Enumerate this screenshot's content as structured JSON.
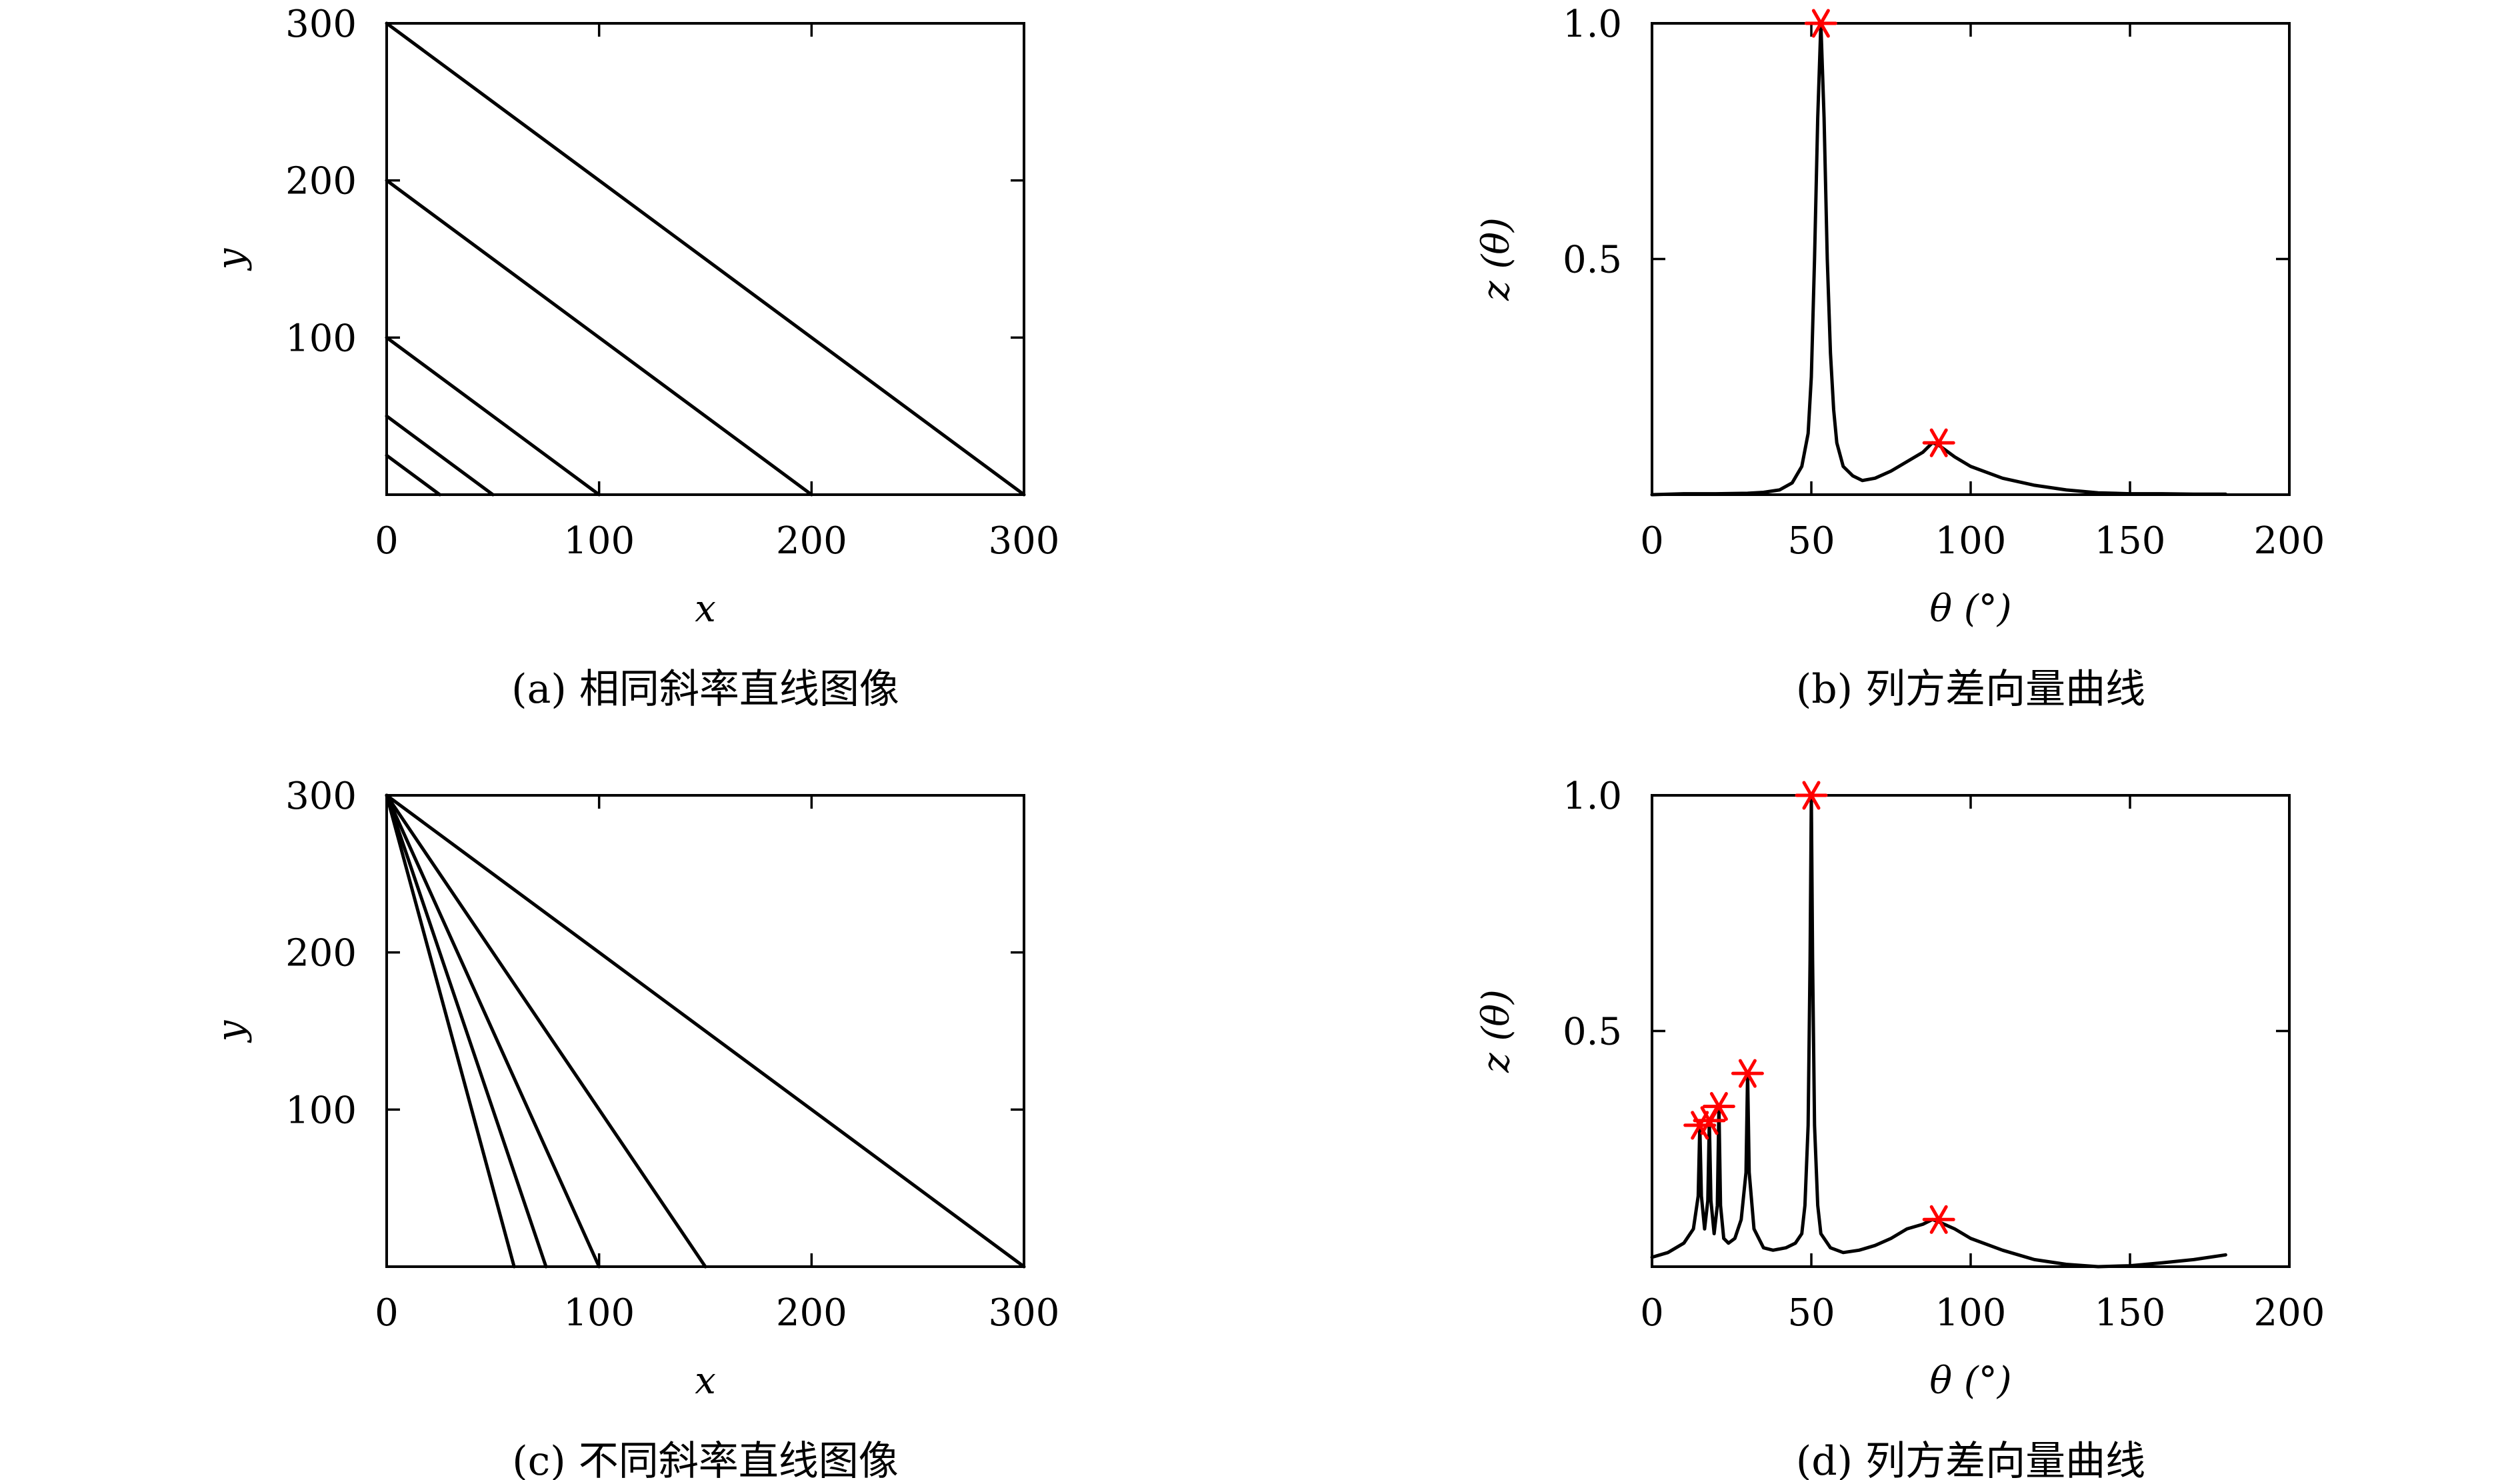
{
  "chart_data": [
    {
      "id": "a",
      "type": "line",
      "caption": "(a) 相同斜率直线图像",
      "xlabel": "x",
      "ylabel": "y",
      "xlim": [
        0,
        300
      ],
      "ylim": [
        0,
        300
      ],
      "xticks": [
        0,
        100,
        200,
        300
      ],
      "yticks": [
        100,
        200,
        300
      ],
      "xtick_labels": [
        "0",
        "100",
        "200",
        "300"
      ],
      "ytick_labels": [
        "100",
        "200",
        "300"
      ],
      "zero_label": "0",
      "lines": [
        [
          [
            0,
            300
          ],
          [
            300,
            0
          ]
        ],
        [
          [
            0,
            200
          ],
          [
            200,
            0
          ]
        ],
        [
          [
            0,
            100
          ],
          [
            100,
            0
          ]
        ],
        [
          [
            0,
            50
          ],
          [
            50,
            0
          ]
        ],
        [
          [
            0,
            25
          ],
          [
            25,
            0
          ]
        ]
      ]
    },
    {
      "id": "b",
      "type": "line",
      "caption": "(b) 列方差向量曲线",
      "xlabel": "θ (°)",
      "ylabel": "z (θ)",
      "xlim": [
        0,
        200
      ],
      "ylim": [
        0,
        1.0
      ],
      "xticks": [
        0,
        50,
        100,
        150,
        200
      ],
      "yticks": [
        0.5,
        1.0
      ],
      "xtick_labels": [
        "0",
        "50",
        "100",
        "150",
        "200"
      ],
      "ytick_labels": [
        "0.5",
        "1.0"
      ],
      "series": [
        {
          "points": [
            [
              0,
              0.0
            ],
            [
              10,
              0.002
            ],
            [
              20,
              0.002
            ],
            [
              30,
              0.003
            ],
            [
              35,
              0.005
            ],
            [
              40,
              0.01
            ],
            [
              44,
              0.025
            ],
            [
              47,
              0.06
            ],
            [
              49,
              0.13
            ],
            [
              50,
              0.25
            ],
            [
              51,
              0.5
            ],
            [
              52,
              0.8
            ],
            [
              53,
              1.0
            ],
            [
              54,
              0.8
            ],
            [
              55,
              0.5
            ],
            [
              56,
              0.3
            ],
            [
              57,
              0.18
            ],
            [
              58,
              0.11
            ],
            [
              60,
              0.06
            ],
            [
              63,
              0.04
            ],
            [
              66,
              0.03
            ],
            [
              70,
              0.035
            ],
            [
              75,
              0.05
            ],
            [
              80,
              0.07
            ],
            [
              85,
              0.09
            ],
            [
              88,
              0.11
            ],
            [
              90,
              0.105
            ],
            [
              95,
              0.08
            ],
            [
              100,
              0.06
            ],
            [
              110,
              0.035
            ],
            [
              120,
              0.02
            ],
            [
              130,
              0.01
            ],
            [
              140,
              0.004
            ],
            [
              150,
              0.002
            ],
            [
              160,
              0.002
            ],
            [
              170,
              0.001
            ],
            [
              180,
              0.001
            ]
          ]
        }
      ],
      "peaks": [
        [
          53,
          1.0
        ],
        [
          90,
          0.11
        ]
      ]
    },
    {
      "id": "c",
      "type": "line",
      "caption": "(c) 不同斜率直线图像",
      "xlabel": "x",
      "ylabel": "y",
      "xlim": [
        0,
        300
      ],
      "ylim": [
        0,
        300
      ],
      "xticks": [
        0,
        100,
        200,
        300
      ],
      "yticks": [
        100,
        200,
        300
      ],
      "xtick_labels": [
        "0",
        "100",
        "200",
        "300"
      ],
      "ytick_labels": [
        "100",
        "200",
        "300"
      ],
      "zero_label": "0",
      "lines": [
        [
          [
            0,
            300
          ],
          [
            300,
            0
          ]
        ],
        [
          [
            0,
            300
          ],
          [
            150,
            0
          ]
        ],
        [
          [
            0,
            300
          ],
          [
            100,
            0
          ]
        ],
        [
          [
            0,
            300
          ],
          [
            75,
            0
          ]
        ],
        [
          [
            0,
            300
          ],
          [
            60,
            0
          ]
        ]
      ]
    },
    {
      "id": "d",
      "type": "line",
      "caption": "(d) 列方差向量曲线",
      "xlabel": "θ (°)",
      "ylabel": "z (θ)",
      "xlim": [
        0,
        200
      ],
      "ylim": [
        0,
        1.0
      ],
      "xticks": [
        0,
        50,
        100,
        150,
        200
      ],
      "yticks": [
        0.5,
        1.0
      ],
      "xtick_labels": [
        "0",
        "50",
        "100",
        "150",
        "200"
      ],
      "ytick_labels": [
        "0.5",
        "1.0"
      ],
      "series": [
        {
          "points": [
            [
              0,
              0.02
            ],
            [
              5,
              0.03
            ],
            [
              10,
              0.05
            ],
            [
              13,
              0.08
            ],
            [
              14.5,
              0.15
            ],
            [
              15,
              0.3
            ],
            [
              15.5,
              0.15
            ],
            [
              16.5,
              0.08
            ],
            [
              17.5,
              0.14
            ],
            [
              18,
              0.31
            ],
            [
              18.5,
              0.14
            ],
            [
              19.5,
              0.07
            ],
            [
              20.5,
              0.13
            ],
            [
              21,
              0.34
            ],
            [
              21.5,
              0.13
            ],
            [
              22.5,
              0.06
            ],
            [
              24,
              0.05
            ],
            [
              26,
              0.06
            ],
            [
              28,
              0.1
            ],
            [
              29.5,
              0.2
            ],
            [
              30,
              0.41
            ],
            [
              30.5,
              0.2
            ],
            [
              32,
              0.08
            ],
            [
              35,
              0.04
            ],
            [
              38,
              0.035
            ],
            [
              42,
              0.04
            ],
            [
              45,
              0.05
            ],
            [
              47,
              0.07
            ],
            [
              48,
              0.13
            ],
            [
              49,
              0.3
            ],
            [
              49.6,
              0.65
            ],
            [
              50,
              1.0
            ],
            [
              50.4,
              0.65
            ],
            [
              51,
              0.3
            ],
            [
              52,
              0.13
            ],
            [
              53,
              0.07
            ],
            [
              56,
              0.04
            ],
            [
              60,
              0.03
            ],
            [
              65,
              0.035
            ],
            [
              70,
              0.045
            ],
            [
              75,
              0.06
            ],
            [
              80,
              0.08
            ],
            [
              85,
              0.09
            ],
            [
              88,
              0.1
            ],
            [
              90,
              0.095
            ],
            [
              95,
              0.08
            ],
            [
              100,
              0.06
            ],
            [
              110,
              0.035
            ],
            [
              120,
              0.015
            ],
            [
              130,
              0.005
            ],
            [
              140,
              0.0
            ],
            [
              150,
              0.002
            ],
            [
              160,
              0.008
            ],
            [
              170,
              0.015
            ],
            [
              180,
              0.025
            ]
          ]
        }
      ],
      "peaks": [
        [
          15,
          0.3
        ],
        [
          18,
          0.31
        ],
        [
          21,
          0.34
        ],
        [
          30,
          0.41
        ],
        [
          50,
          1.0
        ],
        [
          90,
          0.1
        ]
      ]
    }
  ]
}
